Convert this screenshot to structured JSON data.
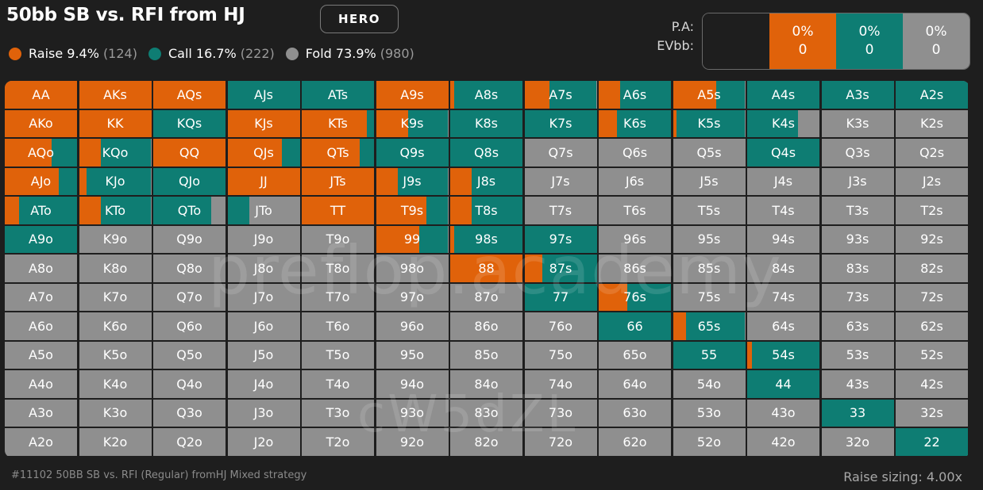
{
  "title": "50bb SB vs. RFI from HJ",
  "hero_badge": "HERO",
  "colors": {
    "raise": "#e0620a",
    "call": "#0e7d73",
    "fold": "#8f8f8f",
    "background": "#1e1e1e"
  },
  "legend": [
    {
      "key": "raise",
      "label": "Raise 9.4%",
      "count": "(124)"
    },
    {
      "key": "call",
      "label": "Call 16.7%",
      "count": "(222)"
    },
    {
      "key": "fold",
      "label": "Fold 73.9%",
      "count": "(980)"
    }
  ],
  "stats": {
    "labels": [
      "P.A:",
      "EVbb:"
    ],
    "columns": [
      {
        "key": "empty",
        "pa": "",
        "ev": ""
      },
      {
        "key": "raise",
        "pa": "0%",
        "ev": "0"
      },
      {
        "key": "call",
        "pa": "0%",
        "ev": "0"
      },
      {
        "key": "fold",
        "pa": "0%",
        "ev": "0"
      }
    ]
  },
  "grid": [
    [
      {
        "h": "AA",
        "r": 1,
        "c": 0
      },
      {
        "h": "AKs",
        "r": 1,
        "c": 0
      },
      {
        "h": "AQs",
        "r": 1,
        "c": 0
      },
      {
        "h": "AJs",
        "r": 0,
        "c": 1
      },
      {
        "h": "ATs",
        "r": 0,
        "c": 1
      },
      {
        "h": "A9s",
        "r": 1,
        "c": 0
      },
      {
        "h": "A8s",
        "r": 0.05,
        "c": 0.95
      },
      {
        "h": "A7s",
        "r": 0.35,
        "c": 0.65
      },
      {
        "h": "A6s",
        "r": 0.3,
        "c": 0.7
      },
      {
        "h": "A5s",
        "r": 0.6,
        "c": 0.4
      },
      {
        "h": "A4s",
        "r": 0,
        "c": 1
      },
      {
        "h": "A3s",
        "r": 0,
        "c": 1
      },
      {
        "h": "A2s",
        "r": 0,
        "c": 1
      }
    ],
    [
      {
        "h": "AKo",
        "r": 1,
        "c": 0
      },
      {
        "h": "KK",
        "r": 1,
        "c": 0
      },
      {
        "h": "KQs",
        "r": 0,
        "c": 1
      },
      {
        "h": "KJs",
        "r": 1,
        "c": 0
      },
      {
        "h": "KTs",
        "r": 0.9,
        "c": 0.1
      },
      {
        "h": "K9s",
        "r": 0.45,
        "c": 0.55
      },
      {
        "h": "K8s",
        "r": 0,
        "c": 1
      },
      {
        "h": "K7s",
        "r": 0,
        "c": 1
      },
      {
        "h": "K6s",
        "r": 0.25,
        "c": 0.75
      },
      {
        "h": "K5s",
        "r": 0.05,
        "c": 0.95
      },
      {
        "h": "K4s",
        "r": 0,
        "c": 0.7
      },
      {
        "h": "K3s",
        "r": 0,
        "c": 0
      },
      {
        "h": "K2s",
        "r": 0,
        "c": 0
      }
    ],
    [
      {
        "h": "AQo",
        "r": 0.65,
        "c": 0.35
      },
      {
        "h": "KQo",
        "r": 0.3,
        "c": 0.7
      },
      {
        "h": "QQ",
        "r": 1,
        "c": 0
      },
      {
        "h": "QJs",
        "r": 0.75,
        "c": 0.25
      },
      {
        "h": "QTs",
        "r": 0.8,
        "c": 0.2
      },
      {
        "h": "Q9s",
        "r": 0,
        "c": 1
      },
      {
        "h": "Q8s",
        "r": 0,
        "c": 1
      },
      {
        "h": "Q7s",
        "r": 0,
        "c": 0
      },
      {
        "h": "Q6s",
        "r": 0,
        "c": 0
      },
      {
        "h": "Q5s",
        "r": 0,
        "c": 0
      },
      {
        "h": "Q4s",
        "r": 0,
        "c": 1
      },
      {
        "h": "Q3s",
        "r": 0,
        "c": 0
      },
      {
        "h": "Q2s",
        "r": 0,
        "c": 0
      }
    ],
    [
      {
        "h": "AJo",
        "r": 0.75,
        "c": 0.25
      },
      {
        "h": "KJo",
        "r": 0.1,
        "c": 0.9
      },
      {
        "h": "QJo",
        "r": 0,
        "c": 1
      },
      {
        "h": "JJ",
        "r": 1,
        "c": 0
      },
      {
        "h": "JTs",
        "r": 1,
        "c": 0
      },
      {
        "h": "J9s",
        "r": 0.3,
        "c": 0.7
      },
      {
        "h": "J8s",
        "r": 0.3,
        "c": 0.7
      },
      {
        "h": "J7s",
        "r": 0,
        "c": 0
      },
      {
        "h": "J6s",
        "r": 0,
        "c": 0
      },
      {
        "h": "J5s",
        "r": 0,
        "c": 0
      },
      {
        "h": "J4s",
        "r": 0,
        "c": 0
      },
      {
        "h": "J3s",
        "r": 0,
        "c": 0
      },
      {
        "h": "J2s",
        "r": 0,
        "c": 0
      }
    ],
    [
      {
        "h": "ATo",
        "r": 0.2,
        "c": 0.8
      },
      {
        "h": "KTo",
        "r": 0.3,
        "c": 0.7
      },
      {
        "h": "QTo",
        "r": 0,
        "c": 0.8
      },
      {
        "h": "JTo",
        "r": 0,
        "c": 0.3
      },
      {
        "h": "TT",
        "r": 1,
        "c": 0
      },
      {
        "h": "T9s",
        "r": 0.7,
        "c": 0.3
      },
      {
        "h": "T8s",
        "r": 0.3,
        "c": 0.7
      },
      {
        "h": "T7s",
        "r": 0,
        "c": 0
      },
      {
        "h": "T6s",
        "r": 0,
        "c": 0
      },
      {
        "h": "T5s",
        "r": 0,
        "c": 0
      },
      {
        "h": "T4s",
        "r": 0,
        "c": 0
      },
      {
        "h": "T3s",
        "r": 0,
        "c": 0
      },
      {
        "h": "T2s",
        "r": 0,
        "c": 0
      }
    ],
    [
      {
        "h": "A9o",
        "r": 0,
        "c": 1
      },
      {
        "h": "K9o",
        "r": 0,
        "c": 0
      },
      {
        "h": "Q9o",
        "r": 0,
        "c": 0
      },
      {
        "h": "J9o",
        "r": 0,
        "c": 0
      },
      {
        "h": "T9o",
        "r": 0,
        "c": 0
      },
      {
        "h": "99",
        "r": 0.6,
        "c": 0.4
      },
      {
        "h": "98s",
        "r": 0.05,
        "c": 0.95
      },
      {
        "h": "97s",
        "r": 0,
        "c": 1
      },
      {
        "h": "96s",
        "r": 0,
        "c": 0
      },
      {
        "h": "95s",
        "r": 0,
        "c": 0
      },
      {
        "h": "94s",
        "r": 0,
        "c": 0
      },
      {
        "h": "93s",
        "r": 0,
        "c": 0
      },
      {
        "h": "92s",
        "r": 0,
        "c": 0
      }
    ],
    [
      {
        "h": "A8o",
        "r": 0,
        "c": 0
      },
      {
        "h": "K8o",
        "r": 0,
        "c": 0
      },
      {
        "h": "Q8o",
        "r": 0,
        "c": 0
      },
      {
        "h": "J8o",
        "r": 0,
        "c": 0
      },
      {
        "h": "T8o",
        "r": 0,
        "c": 0
      },
      {
        "h": "98o",
        "r": 0,
        "c": 0
      },
      {
        "h": "88",
        "r": 1,
        "c": 0
      },
      {
        "h": "87s",
        "r": 0.25,
        "c": 0.75
      },
      {
        "h": "86s",
        "r": 0,
        "c": 0
      },
      {
        "h": "85s",
        "r": 0,
        "c": 0
      },
      {
        "h": "84s",
        "r": 0,
        "c": 0
      },
      {
        "h": "83s",
        "r": 0,
        "c": 0
      },
      {
        "h": "82s",
        "r": 0,
        "c": 0
      }
    ],
    [
      {
        "h": "A7o",
        "r": 0,
        "c": 0
      },
      {
        "h": "K7o",
        "r": 0,
        "c": 0
      },
      {
        "h": "Q7o",
        "r": 0,
        "c": 0
      },
      {
        "h": "J7o",
        "r": 0,
        "c": 0
      },
      {
        "h": "T7o",
        "r": 0,
        "c": 0
      },
      {
        "h": "97o",
        "r": 0,
        "c": 0
      },
      {
        "h": "87o",
        "r": 0,
        "c": 0
      },
      {
        "h": "77",
        "r": 0,
        "c": 1
      },
      {
        "h": "76s",
        "r": 0.4,
        "c": 0.6
      },
      {
        "h": "75s",
        "r": 0,
        "c": 0
      },
      {
        "h": "74s",
        "r": 0,
        "c": 0
      },
      {
        "h": "73s",
        "r": 0,
        "c": 0
      },
      {
        "h": "72s",
        "r": 0,
        "c": 0
      }
    ],
    [
      {
        "h": "A6o",
        "r": 0,
        "c": 0
      },
      {
        "h": "K6o",
        "r": 0,
        "c": 0
      },
      {
        "h": "Q6o",
        "r": 0,
        "c": 0
      },
      {
        "h": "J6o",
        "r": 0,
        "c": 0
      },
      {
        "h": "T6o",
        "r": 0,
        "c": 0
      },
      {
        "h": "96o",
        "r": 0,
        "c": 0
      },
      {
        "h": "86o",
        "r": 0,
        "c": 0
      },
      {
        "h": "76o",
        "r": 0,
        "c": 0
      },
      {
        "h": "66",
        "r": 0,
        "c": 1
      },
      {
        "h": "65s",
        "r": 0.18,
        "c": 0.82
      },
      {
        "h": "64s",
        "r": 0,
        "c": 0
      },
      {
        "h": "63s",
        "r": 0,
        "c": 0
      },
      {
        "h": "62s",
        "r": 0,
        "c": 0
      }
    ],
    [
      {
        "h": "A5o",
        "r": 0,
        "c": 0
      },
      {
        "h": "K5o",
        "r": 0,
        "c": 0
      },
      {
        "h": "Q5o",
        "r": 0,
        "c": 0
      },
      {
        "h": "J5o",
        "r": 0,
        "c": 0
      },
      {
        "h": "T5o",
        "r": 0,
        "c": 0
      },
      {
        "h": "95o",
        "r": 0,
        "c": 0
      },
      {
        "h": "85o",
        "r": 0,
        "c": 0
      },
      {
        "h": "75o",
        "r": 0,
        "c": 0
      },
      {
        "h": "65o",
        "r": 0,
        "c": 0
      },
      {
        "h": "55",
        "r": 0,
        "c": 1
      },
      {
        "h": "54s",
        "r": 0.07,
        "c": 0.93
      },
      {
        "h": "53s",
        "r": 0,
        "c": 0
      },
      {
        "h": "52s",
        "r": 0,
        "c": 0
      }
    ],
    [
      {
        "h": "A4o",
        "r": 0,
        "c": 0
      },
      {
        "h": "K4o",
        "r": 0,
        "c": 0
      },
      {
        "h": "Q4o",
        "r": 0,
        "c": 0
      },
      {
        "h": "J4o",
        "r": 0,
        "c": 0
      },
      {
        "h": "T4o",
        "r": 0,
        "c": 0
      },
      {
        "h": "94o",
        "r": 0,
        "c": 0
      },
      {
        "h": "84o",
        "r": 0,
        "c": 0
      },
      {
        "h": "74o",
        "r": 0,
        "c": 0
      },
      {
        "h": "64o",
        "r": 0,
        "c": 0
      },
      {
        "h": "54o",
        "r": 0,
        "c": 0
      },
      {
        "h": "44",
        "r": 0,
        "c": 1
      },
      {
        "h": "43s",
        "r": 0,
        "c": 0
      },
      {
        "h": "42s",
        "r": 0,
        "c": 0
      }
    ],
    [
      {
        "h": "A3o",
        "r": 0,
        "c": 0
      },
      {
        "h": "K3o",
        "r": 0,
        "c": 0
      },
      {
        "h": "Q3o",
        "r": 0,
        "c": 0
      },
      {
        "h": "J3o",
        "r": 0,
        "c": 0
      },
      {
        "h": "T3o",
        "r": 0,
        "c": 0
      },
      {
        "h": "93o",
        "r": 0,
        "c": 0
      },
      {
        "h": "83o",
        "r": 0,
        "c": 0
      },
      {
        "h": "73o",
        "r": 0,
        "c": 0
      },
      {
        "h": "63o",
        "r": 0,
        "c": 0
      },
      {
        "h": "53o",
        "r": 0,
        "c": 0
      },
      {
        "h": "43o",
        "r": 0,
        "c": 0
      },
      {
        "h": "33",
        "r": 0,
        "c": 1
      },
      {
        "h": "32s",
        "r": 0,
        "c": 0
      }
    ],
    [
      {
        "h": "A2o",
        "r": 0,
        "c": 0
      },
      {
        "h": "K2o",
        "r": 0,
        "c": 0
      },
      {
        "h": "Q2o",
        "r": 0,
        "c": 0
      },
      {
        "h": "J2o",
        "r": 0,
        "c": 0
      },
      {
        "h": "T2o",
        "r": 0,
        "c": 0
      },
      {
        "h": "92o",
        "r": 0,
        "c": 0
      },
      {
        "h": "82o",
        "r": 0,
        "c": 0
      },
      {
        "h": "72o",
        "r": 0,
        "c": 0
      },
      {
        "h": "62o",
        "r": 0,
        "c": 0
      },
      {
        "h": "52o",
        "r": 0,
        "c": 0
      },
      {
        "h": "42o",
        "r": 0,
        "c": 0
      },
      {
        "h": "32o",
        "r": 0,
        "c": 0
      },
      {
        "h": "22",
        "r": 0,
        "c": 1
      }
    ]
  ],
  "watermarks": [
    "preflop.academy",
    "cW5dZL"
  ],
  "footer": {
    "left": "#11102 50BB SB vs. RFI (Regular) fromHJ Mixed strategy",
    "right": "Raise sizing: 4.00x"
  }
}
